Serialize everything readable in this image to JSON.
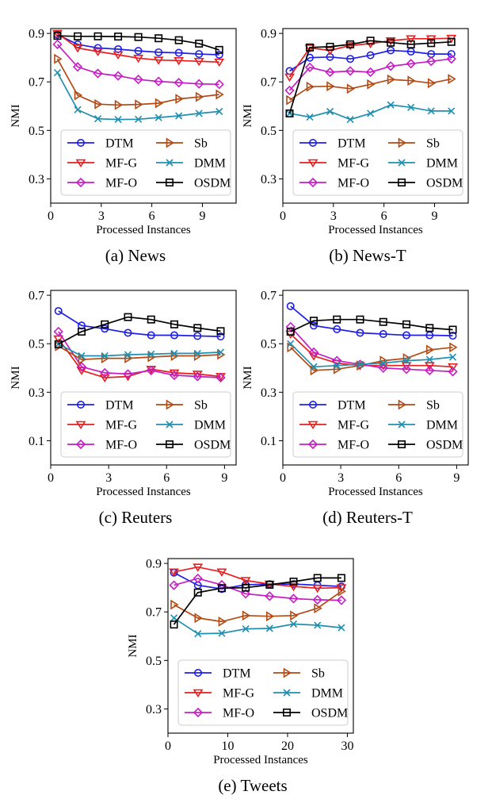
{
  "colors": {
    "DTM": "#1f1fe6",
    "MF-G": "#e61e1e",
    "MF-O": "#c41ec4",
    "Sb": "#b24a14",
    "DMM": "#1f8fb0",
    "OSDM": "#000000"
  },
  "markers": {
    "DTM": "circle",
    "MF-G": "triangle-down",
    "MF-O": "diamond",
    "Sb": "triangle-right",
    "DMM": "x",
    "OSDM": "square"
  },
  "chart_data": [
    {
      "type": "line",
      "caption": "(a) News",
      "xlabel": "Processed Instances",
      "ylabel": "NMI",
      "xlim": [
        0,
        11
      ],
      "ylim": [
        0.2,
        0.92
      ],
      "xticks": [
        0,
        3,
        6,
        9
      ],
      "yticks": [
        0.3,
        0.5,
        0.7,
        0.9
      ],
      "ytick_labels": [
        "0.3",
        "0.5",
        "0.7",
        "0.9"
      ],
      "legend_position": "lower",
      "x": [
        0.4,
        1.6,
        2.8,
        4.0,
        5.2,
        6.4,
        7.6,
        8.8,
        10.0
      ],
      "series": [
        {
          "name": "DTM",
          "values": [
            0.895,
            0.855,
            0.84,
            0.835,
            0.828,
            0.822,
            0.82,
            0.815,
            0.812
          ]
        },
        {
          "name": "MF-G",
          "values": [
            0.9,
            0.84,
            0.825,
            0.812,
            0.798,
            0.79,
            0.788,
            0.785,
            0.782
          ]
        },
        {
          "name": "MF-O",
          "values": [
            0.855,
            0.762,
            0.735,
            0.725,
            0.71,
            0.702,
            0.697,
            0.692,
            0.69
          ]
        },
        {
          "name": "Sb",
          "values": [
            0.795,
            0.645,
            0.608,
            0.605,
            0.607,
            0.612,
            0.63,
            0.638,
            0.648
          ]
        },
        {
          "name": "DMM",
          "values": [
            0.738,
            0.585,
            0.548,
            0.545,
            0.546,
            0.553,
            0.56,
            0.57,
            0.578
          ]
        },
        {
          "name": "OSDM",
          "values": [
            0.89,
            0.888,
            0.888,
            0.887,
            0.885,
            0.88,
            0.872,
            0.858,
            0.832
          ]
        }
      ]
    },
    {
      "type": "line",
      "caption": "(b) News-T",
      "xlabel": "Processed Instances",
      "ylabel": "NMI",
      "xlim": [
        0,
        11
      ],
      "ylim": [
        0.2,
        0.92
      ],
      "xticks": [
        0,
        3,
        6,
        9
      ],
      "yticks": [
        0.3,
        0.5,
        0.7,
        0.9
      ],
      "ytick_labels": [
        "0.3",
        "0.5",
        "0.7",
        "0.9"
      ],
      "legend_position": "lower",
      "x": [
        0.4,
        1.6,
        2.8,
        4.0,
        5.2,
        6.4,
        7.6,
        8.8,
        10.0
      ],
      "series": [
        {
          "name": "DTM",
          "values": [
            0.745,
            0.8,
            0.803,
            0.795,
            0.81,
            0.83,
            0.825,
            0.815,
            0.815
          ]
        },
        {
          "name": "MF-G",
          "values": [
            0.72,
            0.84,
            0.83,
            0.85,
            0.858,
            0.87,
            0.878,
            0.878,
            0.88
          ]
        },
        {
          "name": "MF-O",
          "values": [
            0.665,
            0.76,
            0.74,
            0.745,
            0.74,
            0.765,
            0.775,
            0.785,
            0.795
          ]
        },
        {
          "name": "Sb",
          "values": [
            0.625,
            0.68,
            0.682,
            0.672,
            0.69,
            0.71,
            0.705,
            0.695,
            0.712
          ]
        },
        {
          "name": "DMM",
          "values": [
            0.57,
            0.555,
            0.578,
            0.545,
            0.57,
            0.605,
            0.595,
            0.58,
            0.58
          ]
        },
        {
          "name": "OSDM",
          "values": [
            0.57,
            0.842,
            0.845,
            0.855,
            0.87,
            0.862,
            0.855,
            0.86,
            0.865
          ]
        }
      ]
    },
    {
      "type": "line",
      "caption": "(c) Reuters",
      "xlabel": "Processed Instances",
      "ylabel": "NMI",
      "xlim": [
        0,
        9.6
      ],
      "ylim": [
        0.0,
        0.72
      ],
      "xticks": [
        0,
        3,
        6,
        9
      ],
      "yticks": [
        0.1,
        0.3,
        0.5,
        0.7
      ],
      "ytick_labels": [
        "0.1",
        "0.3",
        "0.5",
        "0.7"
      ],
      "legend_position": "lower",
      "x": [
        0.4,
        1.6,
        2.8,
        4.0,
        5.2,
        6.4,
        7.6,
        8.8
      ],
      "series": [
        {
          "name": "DTM",
          "values": [
            0.635,
            0.575,
            0.562,
            0.545,
            0.535,
            0.535,
            0.532,
            0.53
          ]
        },
        {
          "name": "MF-G",
          "values": [
            0.52,
            0.39,
            0.36,
            0.365,
            0.395,
            0.38,
            0.375,
            0.365
          ]
        },
        {
          "name": "MF-O",
          "values": [
            0.55,
            0.405,
            0.38,
            0.375,
            0.39,
            0.37,
            0.365,
            0.36
          ]
        },
        {
          "name": "Sb",
          "values": [
            0.49,
            0.435,
            0.44,
            0.44,
            0.445,
            0.45,
            0.45,
            0.455
          ]
        },
        {
          "name": "DMM",
          "values": [
            0.498,
            0.45,
            0.45,
            0.455,
            0.457,
            0.46,
            0.46,
            0.465
          ]
        },
        {
          "name": "OSDM",
          "values": [
            0.498,
            0.55,
            0.58,
            0.61,
            0.6,
            0.58,
            0.565,
            0.552
          ]
        }
      ]
    },
    {
      "type": "line",
      "caption": "(d) Reuters-T",
      "xlabel": "Processed Instances",
      "ylabel": "NMI",
      "xlim": [
        0,
        9.6
      ],
      "ylim": [
        0.0,
        0.72
      ],
      "xticks": [
        0,
        3,
        6,
        9
      ],
      "yticks": [
        0.1,
        0.3,
        0.5,
        0.7
      ],
      "ytick_labels": [
        "0.1",
        "0.3",
        "0.5",
        "0.7"
      ],
      "legend_position": "lower",
      "x": [
        0.4,
        1.6,
        2.8,
        4.0,
        5.2,
        6.4,
        7.6,
        8.8
      ],
      "series": [
        {
          "name": "DTM",
          "values": [
            0.655,
            0.575,
            0.56,
            0.545,
            0.54,
            0.535,
            0.535,
            0.533
          ]
        },
        {
          "name": "MF-G",
          "values": [
            0.54,
            0.45,
            0.42,
            0.41,
            0.41,
            0.41,
            0.41,
            0.405
          ]
        },
        {
          "name": "MF-O",
          "values": [
            0.57,
            0.465,
            0.43,
            0.415,
            0.4,
            0.395,
            0.39,
            0.385
          ]
        },
        {
          "name": "Sb",
          "values": [
            0.485,
            0.39,
            0.395,
            0.41,
            0.43,
            0.44,
            0.475,
            0.485
          ]
        },
        {
          "name": "DMM",
          "values": [
            0.5,
            0.405,
            0.41,
            0.415,
            0.42,
            0.43,
            0.435,
            0.445
          ]
        },
        {
          "name": "OSDM",
          "values": [
            0.55,
            0.595,
            0.6,
            0.6,
            0.59,
            0.58,
            0.565,
            0.558
          ]
        }
      ]
    },
    {
      "type": "line",
      "caption": "(e) Tweets",
      "xlabel": "Processed Instances",
      "ylabel": "NMI",
      "xlim": [
        0,
        31
      ],
      "ylim": [
        0.2,
        0.92
      ],
      "xticks": [
        0,
        10,
        20,
        30
      ],
      "yticks": [
        0.3,
        0.5,
        0.7,
        0.9
      ],
      "ytick_labels": [
        "0.3",
        "0.5",
        "0.7",
        "0.9"
      ],
      "legend_position": "lower",
      "x": [
        1,
        5,
        9,
        13,
        17,
        21,
        25,
        29
      ],
      "series": [
        {
          "name": "DTM",
          "values": [
            0.862,
            0.81,
            0.795,
            0.812,
            0.815,
            0.815,
            0.81,
            0.805
          ]
        },
        {
          "name": "MF-G",
          "values": [
            0.865,
            0.885,
            0.865,
            0.83,
            0.815,
            0.805,
            0.798,
            0.8
          ]
        },
        {
          "name": "MF-O",
          "values": [
            0.81,
            0.838,
            0.812,
            0.775,
            0.765,
            0.755,
            0.75,
            0.748
          ]
        },
        {
          "name": "Sb",
          "values": [
            0.73,
            0.675,
            0.66,
            0.685,
            0.682,
            0.685,
            0.715,
            0.785
          ]
        },
        {
          "name": "DMM",
          "values": [
            0.675,
            0.61,
            0.612,
            0.63,
            0.632,
            0.65,
            0.645,
            0.635
          ]
        },
        {
          "name": "OSDM",
          "values": [
            0.648,
            0.78,
            0.798,
            0.8,
            0.812,
            0.825,
            0.84,
            0.84
          ]
        }
      ]
    }
  ]
}
